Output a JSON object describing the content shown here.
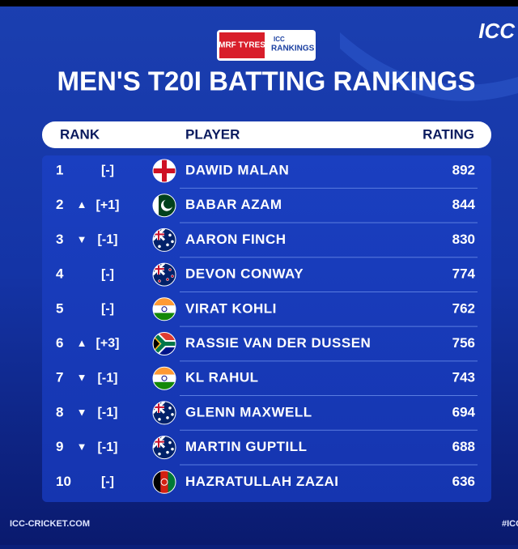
{
  "header": {
    "sponsor": "MRF TYRES",
    "badge": "RANKINGS",
    "badge_prefix": "ICC",
    "brand": "ICC",
    "title": "MEN'S T20I BATTING RANKINGS"
  },
  "table": {
    "columns": [
      "RANK",
      "PLAYER",
      "RATING"
    ],
    "rows": [
      {
        "rank": 1,
        "change": "[-]",
        "player": "DAWID MALAN",
        "rating": 892
      },
      {
        "rank": 2,
        "arrow": "▲",
        "change": "[+1]",
        "player": "BABAR AZAM",
        "rating": 844
      },
      {
        "rank": 3,
        "arrow": "▼",
        "change": "[-1]",
        "player": "AARON FINCH",
        "rating": 830
      },
      {
        "rank": 4,
        "change": "[-]",
        "player": "DEVON CONWAY",
        "rating": 774
      },
      {
        "rank": 5,
        "change": "[-]",
        "player": "VIRAT KOHLI",
        "rating": 762
      },
      {
        "rank": 6,
        "arrow": "▲",
        "change": "[+3]",
        "player": "RASSIE VAN DER DUSSEN",
        "rating": 756
      },
      {
        "rank": 7,
        "arrow": "▼",
        "change": "[-1]",
        "player": "KL RAHUL",
        "rating": 743
      },
      {
        "rank": 8,
        "arrow": "▼",
        "change": "[-1]",
        "player": "GLENN MAXWELL",
        "rating": 694
      },
      {
        "rank": 9,
        "arrow": "▼",
        "change": "[-1]",
        "player": "MARTIN GUPTILL",
        "rating": 688
      },
      {
        "rank": 10,
        "change": "[-]",
        "player": "HAZRATULLAH ZAZAI",
        "rating": 636
      }
    ]
  },
  "footer": {
    "site": "ICC-CRICKET.COM",
    "tag": "#ICC"
  }
}
